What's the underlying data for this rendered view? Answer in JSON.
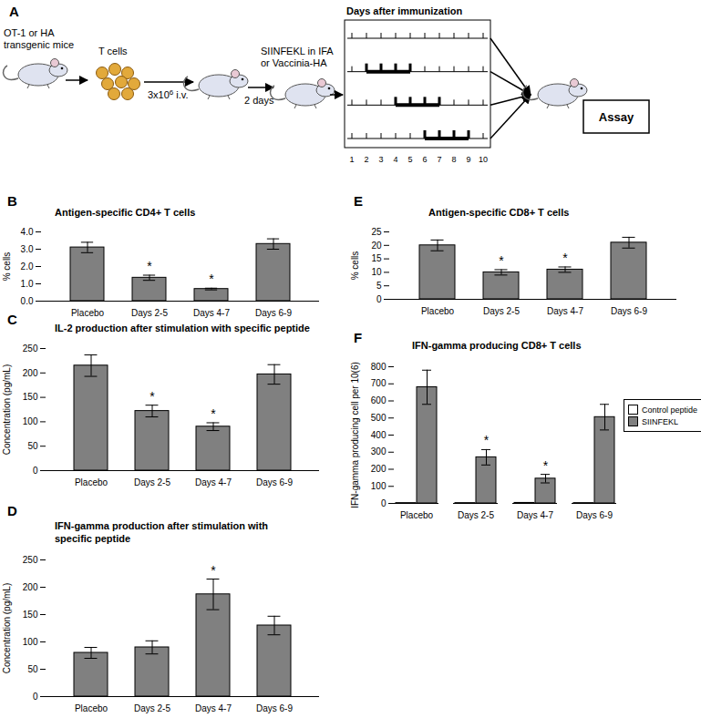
{
  "diagram": {
    "panel": "A",
    "donor_label": [
      "OT-1 or  HA",
      "transgenic mice"
    ],
    "cells_label": "T cells",
    "transfer_label": "3x10",
    "transfer_exponent": "6",
    "transfer_suffix": " i.v.",
    "interval_label": "2 days",
    "immunization_label": [
      "SIINFEKL in IFA",
      "or Vaccinia-HA"
    ],
    "timeline_title": "Days after immunization",
    "days": [
      1,
      2,
      3,
      4,
      5,
      6,
      7,
      8,
      9,
      10
    ],
    "treatment_windows": [
      [
        2,
        5
      ],
      [
        4,
        7
      ],
      [
        6,
        9
      ]
    ],
    "assay_label": "Assay"
  },
  "chart_data": [
    {
      "panel": "B",
      "type": "bar",
      "title": "Antigen-specific CD4+ T cells",
      "y_label": "% cells",
      "categories": [
        "Placebo",
        "Days 2-5",
        "Days 4-7",
        "Days 6-9"
      ],
      "values": [
        3.1,
        1.35,
        0.7,
        3.3
      ],
      "errors": [
        0.3,
        0.15,
        0.05,
        0.3
      ],
      "color": "#808080",
      "ylim": [
        0,
        4
      ],
      "yticks": [
        0,
        1,
        2,
        3,
        4
      ],
      "annotations": [
        {
          "category": "Days 2-5",
          "text": "*"
        },
        {
          "category": "Days 4-7",
          "text": "*"
        }
      ]
    },
    {
      "panel": "C",
      "type": "bar",
      "title": "IL-2 production after stimulation with specific peptide",
      "y_label": "Concentration (pg/mL)",
      "categories": [
        "Placebo",
        "Days 2-5",
        "Days 4-7",
        "Days 6-9"
      ],
      "values": [
        215,
        122,
        90,
        197
      ],
      "errors": [
        22,
        12,
        8,
        20
      ],
      "color": "#808080",
      "ylim": [
        0,
        250
      ],
      "yticks": [
        0,
        50,
        100,
        150,
        200,
        250
      ],
      "annotations": [
        {
          "category": "Days 2-5",
          "text": "*"
        },
        {
          "category": "Days 4-7",
          "text": "*"
        }
      ]
    },
    {
      "panel": "D",
      "type": "bar",
      "title": "IFN-gamma production after stimulation with specific peptide",
      "y_label": "Concentration (pg/mL)",
      "categories": [
        "Placebo",
        "Days 2-5",
        "Days 4-7",
        "Days 6-9"
      ],
      "values": [
        80,
        90,
        187,
        130
      ],
      "errors": [
        10,
        12,
        28,
        17
      ],
      "color": "#808080",
      "ylim": [
        0,
        250
      ],
      "yticks": [
        0,
        50,
        100,
        150,
        200,
        250
      ],
      "annotations": [
        {
          "category": "Days 4-7",
          "text": "*"
        }
      ]
    },
    {
      "panel": "E",
      "type": "bar",
      "title": "Antigen-specific CD8+ T cells",
      "y_label": "% cells",
      "categories": [
        "Placebo",
        "Days 2-5",
        "Days 4-7",
        "Days 6-9"
      ],
      "values": [
        20,
        10,
        11,
        21
      ],
      "errors": [
        2,
        1,
        1,
        2
      ],
      "color": "#808080",
      "ylim": [
        0,
        25
      ],
      "yticks": [
        0,
        5,
        10,
        15,
        20,
        25
      ],
      "annotations": [
        {
          "category": "Days 2-5",
          "text": "*"
        },
        {
          "category": "Days 4-7",
          "text": "*"
        }
      ]
    },
    {
      "panel": "F",
      "type": "grouped_bar",
      "title": "IFN-gamma producing CD8+ T cells",
      "y_label": "IFN-gamma producing cell per 10(6)",
      "categories": [
        "Placebo",
        "Days 2-5",
        "Days 4-7",
        "Days 6-9"
      ],
      "series": [
        {
          "name": "Control peptide",
          "color": "#ffffff",
          "values": [
            2,
            2,
            3,
            2
          ]
        },
        {
          "name": "SIINFEKL",
          "color": "#808080",
          "values": [
            680,
            270,
            145,
            505
          ],
          "errors": [
            100,
            45,
            25,
            75
          ]
        }
      ],
      "ylim": [
        0,
        800
      ],
      "yticks": [
        0,
        100,
        200,
        300,
        400,
        500,
        600,
        700,
        800
      ],
      "legend": "right",
      "annotations": [
        {
          "category": "Days 2-5",
          "series": "SIINFEKL",
          "text": "*"
        },
        {
          "category": "Days 4-7",
          "series": "SIINFEKL",
          "text": "*"
        }
      ]
    }
  ]
}
